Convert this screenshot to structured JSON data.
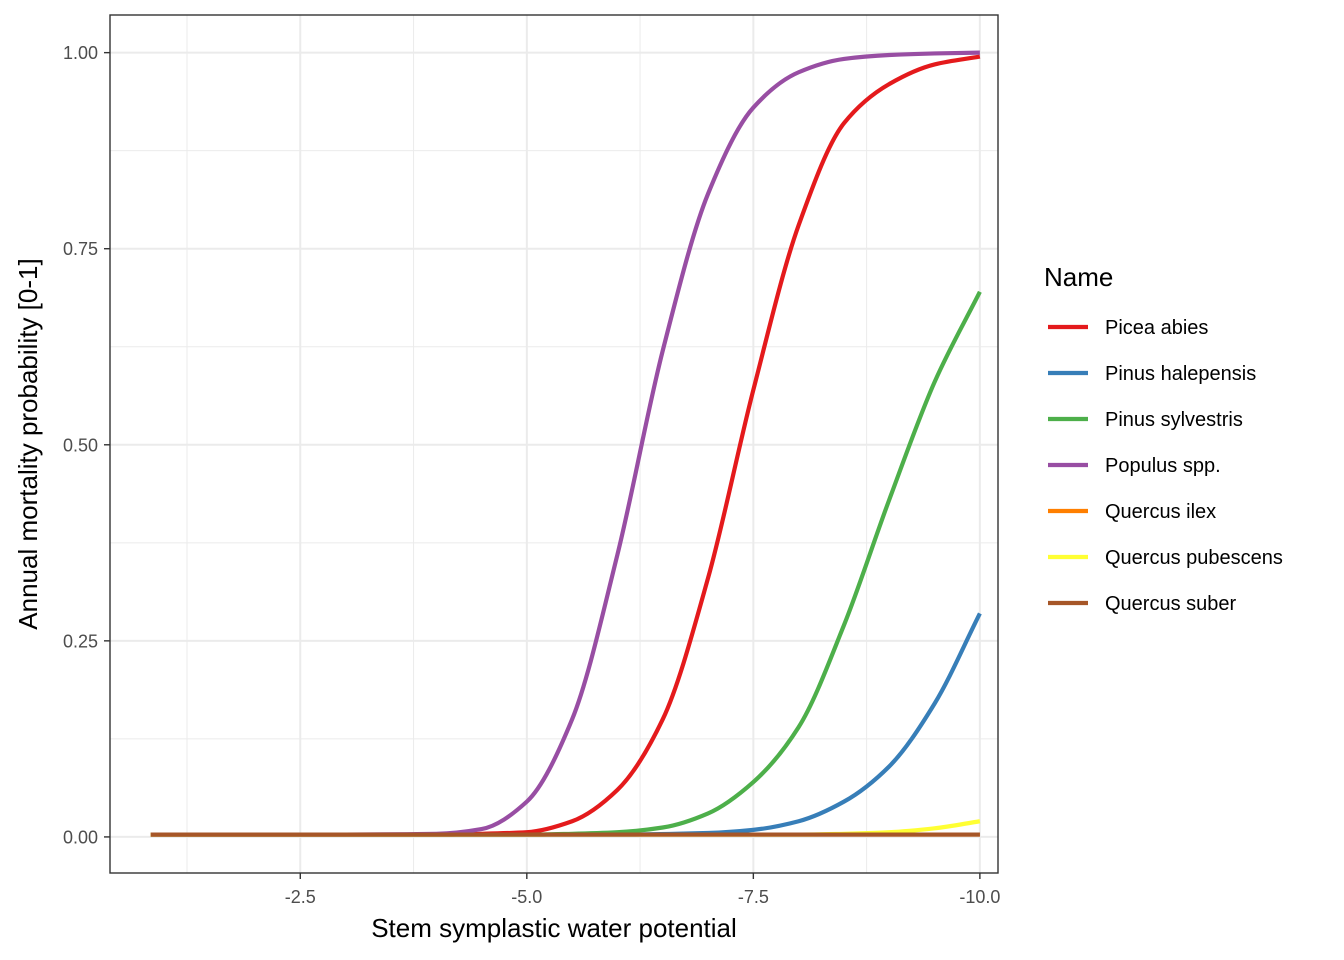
{
  "chart_data": {
    "type": "line",
    "xlabel": "Stem symplastic water potential",
    "ylabel": "Annual mortality probability [0-1]",
    "x_axis_reversed": true,
    "xlim": [
      -0.4,
      -10.2
    ],
    "ylim": [
      -0.046,
      1.048
    ],
    "x_ticks": [
      -2.5,
      -5.0,
      -7.5,
      -10.0
    ],
    "x_tick_labels": [
      "-2.5",
      "-5.0",
      "-7.5",
      "-10.0"
    ],
    "y_ticks": [
      0,
      0.25,
      0.5,
      0.75,
      1.0
    ],
    "y_tick_labels": [
      "0.00",
      "0.25",
      "0.50",
      "0.75",
      "1.00"
    ],
    "grid": true,
    "legend": {
      "title": "Name",
      "placement": "right"
    },
    "series": [
      {
        "name": "Picea abies",
        "color": "#e41a1c",
        "x": [
          -0.85,
          -3,
          -4,
          -4.5,
          -5,
          -5.5,
          -6,
          -6.5,
          -7,
          -7.5,
          -8,
          -8.5,
          -9,
          -9.5,
          -10
        ],
        "y": [
          0.003,
          0.003,
          0.003,
          0.004,
          0.006,
          0.02,
          0.06,
          0.15,
          0.33,
          0.57,
          0.78,
          0.91,
          0.96,
          0.985,
          0.995
        ]
      },
      {
        "name": "Pinus halepensis",
        "color": "#377eb8",
        "x": [
          -0.85,
          -5,
          -6,
          -7,
          -7.5,
          -8,
          -8.5,
          -9,
          -9.5,
          -10
        ],
        "y": [
          0.003,
          0.003,
          0.003,
          0.005,
          0.009,
          0.02,
          0.045,
          0.09,
          0.17,
          0.285
        ]
      },
      {
        "name": "Pinus sylvestris",
        "color": "#4daf4a",
        "x": [
          -0.85,
          -4,
          -5,
          -5.5,
          -6,
          -6.5,
          -7,
          -7.5,
          -8,
          -8.5,
          -9,
          -9.5,
          -10
        ],
        "y": [
          0.003,
          0.003,
          0.003,
          0.004,
          0.006,
          0.012,
          0.03,
          0.07,
          0.14,
          0.27,
          0.43,
          0.58,
          0.695
        ]
      },
      {
        "name": "Populus spp.",
        "color": "#984ea3",
        "x": [
          -0.85,
          -3,
          -4,
          -4.5,
          -5,
          -5.5,
          -6,
          -6.5,
          -7,
          -7.5,
          -8,
          -8.5,
          -9,
          -9.5,
          -10
        ],
        "y": [
          0.003,
          0.003,
          0.004,
          0.01,
          0.045,
          0.15,
          0.36,
          0.62,
          0.82,
          0.93,
          0.975,
          0.992,
          0.997,
          0.999,
          1.0
        ]
      },
      {
        "name": "Quercus ilex",
        "color": "#ff7f00",
        "x": [
          -0.85,
          -5,
          -8,
          -9,
          -10
        ],
        "y": [
          0.003,
          0.003,
          0.003,
          0.003,
          0.003
        ]
      },
      {
        "name": "Quercus pubescens",
        "color": "#ffff33",
        "x": [
          -0.85,
          -5,
          -8,
          -8.5,
          -9,
          -9.5,
          -10
        ],
        "y": [
          0.003,
          0.003,
          0.003,
          0.004,
          0.006,
          0.011,
          0.02
        ]
      },
      {
        "name": "Quercus suber",
        "color": "#a65628",
        "x": [
          -0.85,
          -5,
          -10
        ],
        "y": [
          0.003,
          0.003,
          0.003
        ]
      }
    ]
  }
}
